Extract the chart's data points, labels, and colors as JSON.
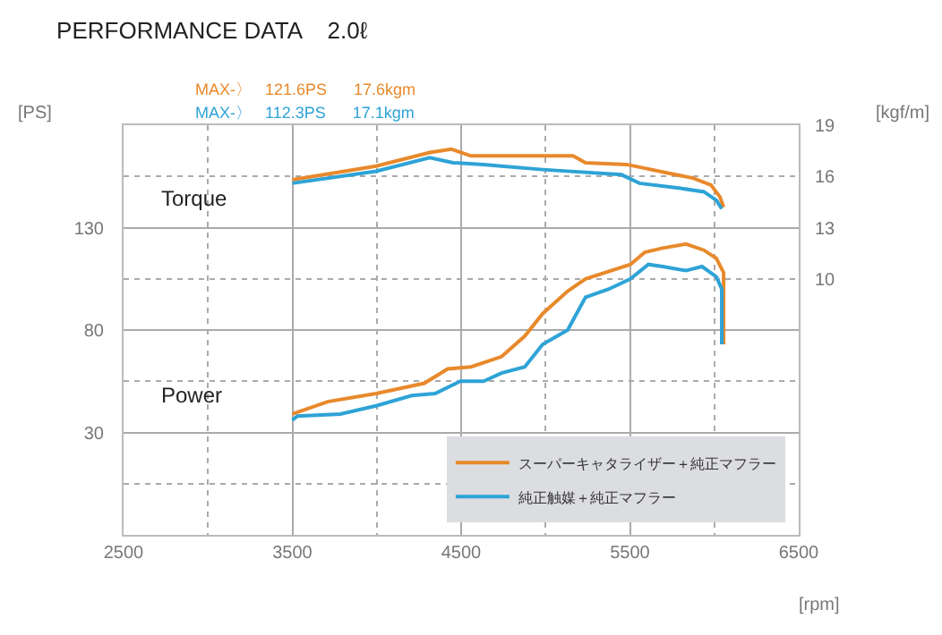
{
  "chart_data": {
    "type": "line",
    "title": "PERFORMANCE DATA    2.0ℓ",
    "xlabel": "[rpm]",
    "ylabel": "[PS]",
    "y2label": "[kgf/m]",
    "annotations": [
      "MAX-〉   121.6PS      17.6kgm",
      "MAX-〉   112.3PS      17.1kgm",
      "Torque",
      "Power"
    ],
    "xlim": [
      2500,
      6500
    ],
    "xticks": [
      2500,
      {
        "value": 3000,
        "label": null
      },
      3500,
      {
        "value": 4000,
        "label": null
      },
      4500,
      {
        "value": 5000,
        "label": null
      },
      5500,
      {
        "value": 6000,
        "label": null
      },
      6500
    ],
    "ylim": [
      -20,
      180
    ],
    "yticks": [
      {
        "value": 5,
        "label": null
      },
      30,
      {
        "value": 55,
        "label": null
      },
      80,
      {
        "value": 105,
        "label": null
      },
      130,
      {
        "value": 155,
        "label": null
      }
    ],
    "y2lim": [
      -5,
      19
    ],
    "y2ticks": [
      10,
      13,
      16,
      19
    ],
    "grid": true,
    "legend": "bottom right",
    "marker": "none",
    "line_style": "solid",
    "series": [
      {
        "name": "スーパーキャタライザー＋純正マフラー",
        "color": "#e8892b",
        "x": [
          3500,
          3710,
          3996,
          4282,
          4420,
          4558,
          4739,
          4877,
          4983,
          5131,
          5237,
          5503,
          5588,
          5694,
          5832,
          5938,
          6012,
          6055,
          6055
        ],
        "values": [
          39,
          45,
          49,
          54,
          61,
          62,
          67,
          77,
          88,
          99,
          105,
          112,
          118,
          120,
          122,
          119,
          115,
          108,
          73
        ]
      },
      {
        "name": "純正触媒＋純正マフラー",
        "color": "#2ea3d6",
        "x": [
          3500,
          3530,
          3784,
          3996,
          4208,
          4346,
          4495,
          4633,
          4739,
          4877,
          4983,
          5131,
          5237,
          5375,
          5503,
          5609,
          5694,
          5832,
          5927,
          6012,
          6044,
          6044
        ],
        "values": [
          36,
          38,
          39,
          43,
          48,
          49,
          55,
          55,
          59,
          62,
          73,
          80,
          96,
          100,
          105,
          112,
          111,
          109,
          111,
          106,
          100,
          73
        ]
      },
      {
        "color": "#e8892b",
        "axis": "y2",
        "x": [
          3500,
          3996,
          4314,
          4442,
          4558,
          4739,
          4813,
          5163,
          5237,
          5481,
          5725,
          5874,
          5980,
          6033,
          6055
        ],
        "values": [
          15.8,
          16.6,
          17.4,
          17.6,
          17.2,
          17.2,
          17.2,
          17.2,
          16.8,
          16.7,
          16.2,
          15.9,
          15.5,
          14.8,
          14.2
        ]
      },
      {
        "color": "#2ea3d6",
        "axis": "y2",
        "x": [
          3500,
          3996,
          4314,
          4452,
          4633,
          4739,
          4983,
          5450,
          5556,
          5800,
          5938,
          6012,
          6044
        ],
        "values": [
          15.6,
          16.3,
          17.1,
          16.8,
          16.7,
          16.6,
          16.4,
          16.1,
          15.6,
          15.3,
          15.1,
          14.6,
          14.1
        ]
      }
    ]
  }
}
